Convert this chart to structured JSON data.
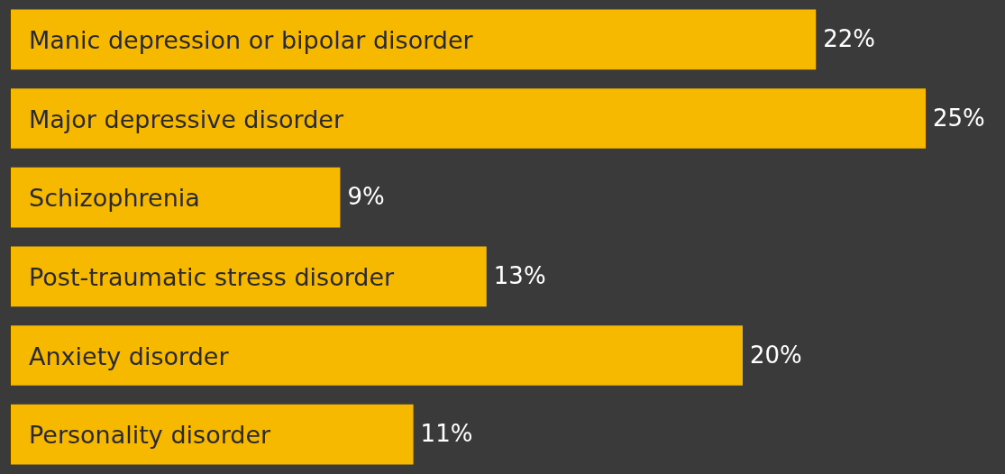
{
  "chart_data": {
    "type": "bar",
    "orientation": "horizontal",
    "categories": [
      "Manic depression or bipolar disorder",
      "Major depressive disorder",
      "Schizophrenia",
      "Post-traumatic stress disorder",
      "Anxiety disorder",
      "Personality disorder"
    ],
    "values": [
      22,
      25,
      9,
      13,
      20,
      11
    ],
    "value_labels": [
      "22%",
      "25%",
      "9%",
      "13%",
      "20%",
      "11%"
    ],
    "color": "#f7b800"
  }
}
